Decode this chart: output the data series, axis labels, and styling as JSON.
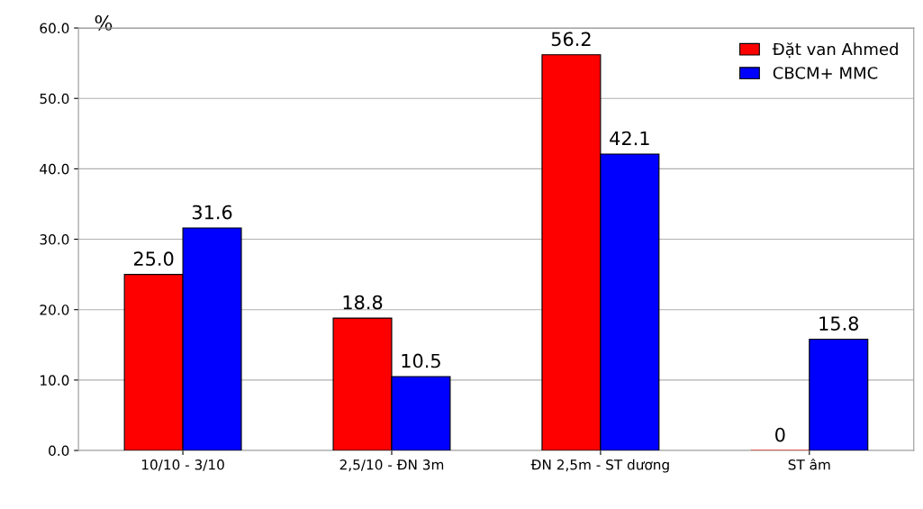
{
  "chart_data": {
    "type": "bar",
    "ylabel": "%",
    "categories": [
      "10/10 - 3/10",
      "2,5/10 - ĐN 3m",
      "ĐN 2,5m - ST dương",
      "ST âm"
    ],
    "series": [
      {
        "name": "Đặt van Ahmed",
        "color": "#ff0000",
        "values": [
          25.0,
          18.8,
          56.2,
          0
        ],
        "value_labels": [
          "25.0",
          "18.8",
          "56.2",
          "0"
        ]
      },
      {
        "name": "CBCM+ MMC",
        "color": "#0000ff",
        "values": [
          31.6,
          10.5,
          42.1,
          15.8
        ],
        "value_labels": [
          "31.6",
          "10.5",
          "42.1",
          "15.8"
        ]
      }
    ],
    "ylim": [
      0,
      60
    ],
    "yticks": [
      {
        "value": 0,
        "label": "0.0"
      },
      {
        "value": 10,
        "label": "10.0"
      },
      {
        "value": 20,
        "label": "20.0"
      },
      {
        "value": 30,
        "label": "30.0"
      },
      {
        "value": 40,
        "label": "40.0"
      },
      {
        "value": 50,
        "label": "50.0"
      },
      {
        "value": 60,
        "label": "60.0"
      }
    ],
    "grid": "y",
    "legend": "top right"
  }
}
